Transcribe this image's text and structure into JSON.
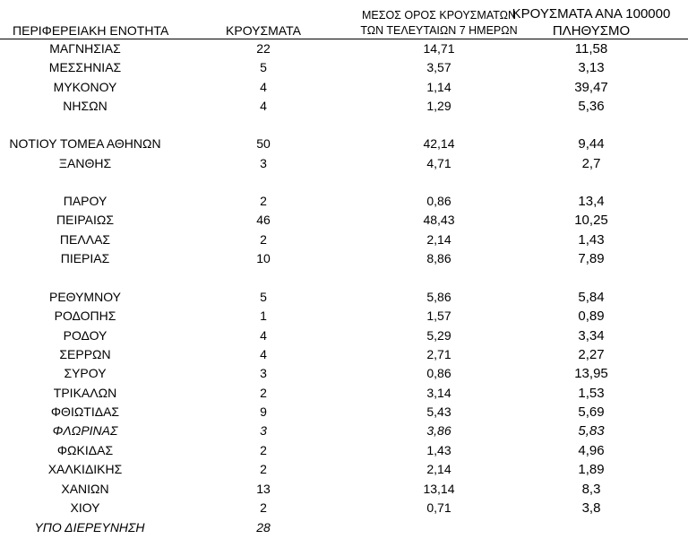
{
  "headers": {
    "region": "ΠΕΡΙΦΕΡΕΙΑΚΗ ΕΝΟΤΗΤΑ",
    "cases": "ΚΡΟΥΣΜΑΤΑ",
    "avg_line1": "ΜΕΣΟΣ ΟΡΟΣ ΚΡΟΥΣΜΑΤΩΝ",
    "avg_line2": "ΤΩΝ ΤΕΛΕΥΤΑΙΩΝ 7 ΗΜΕΡΩΝ",
    "per100k_line1": "ΚΡΟΥΣΜΑΤΑ ΑΝΑ 100000",
    "per100k_line2": "ΠΛΗΘΥΣΜΟ"
  },
  "rows": [
    {
      "region": "ΜΑΓΝΗΣΙΑΣ",
      "cases": "22",
      "avg": "14,71",
      "per100k": "11,58"
    },
    {
      "region": "ΜΕΣΣΗΝΙΑΣ",
      "cases": "5",
      "avg": "3,57",
      "per100k": "3,13"
    },
    {
      "region": "ΜΥΚΟΝΟΥ",
      "cases": "4",
      "avg": "1,14",
      "per100k": "39,47"
    },
    {
      "region": "ΝΗΣΩΝ",
      "cases": "4",
      "avg": "1,29",
      "per100k": "5,36"
    },
    {
      "region": "ΝΟΤΙΟΥ ΤΟΜΕΑ ΑΘΗΝΩΝ",
      "cases": "50",
      "avg": "42,14",
      "per100k": "9,44"
    },
    {
      "region": "ΞΑΝΘΗΣ",
      "cases": "3",
      "avg": "4,71",
      "per100k": "2,7"
    },
    {
      "region": "ΠΑΡΟΥ",
      "cases": "2",
      "avg": "0,86",
      "per100k": "13,4"
    },
    {
      "region": "ΠΕΙΡΑΙΩΣ",
      "cases": "46",
      "avg": "48,43",
      "per100k": "10,25"
    },
    {
      "region": "ΠΕΛΛΑΣ",
      "cases": "2",
      "avg": "2,14",
      "per100k": "1,43"
    },
    {
      "region": "ΠΙΕΡΙΑΣ",
      "cases": "10",
      "avg": "8,86",
      "per100k": "7,89"
    },
    {
      "region": "ΡΕΘΥΜΝΟΥ",
      "cases": "5",
      "avg": "5,86",
      "per100k": "5,84"
    },
    {
      "region": "ΡΟΔΟΠΗΣ",
      "cases": "1",
      "avg": "1,57",
      "per100k": "0,89"
    },
    {
      "region": "ΡΟΔΟΥ",
      "cases": "4",
      "avg": "5,29",
      "per100k": "3,34"
    },
    {
      "region": "ΣΕΡΡΩΝ",
      "cases": "4",
      "avg": "2,71",
      "per100k": "2,27"
    },
    {
      "region": "ΣΥΡΟΥ",
      "cases": "3",
      "avg": "0,86",
      "per100k": "13,95"
    },
    {
      "region": "ΤΡΙΚΑΛΩΝ",
      "cases": "2",
      "avg": "3,14",
      "per100k": "1,53"
    },
    {
      "region": "ΦΘΙΩΤΙΔΑΣ",
      "cases": "9",
      "avg": "5,43",
      "per100k": "5,69"
    },
    {
      "region": "ΦΛΩΡΙΝΑΣ",
      "cases": "3",
      "avg": "3,86",
      "per100k": "5,83"
    },
    {
      "region": "ΦΩΚΙΔΑΣ",
      "cases": "2",
      "avg": "1,43",
      "per100k": "4,96"
    },
    {
      "region": "ΧΑΛΚΙΔΙΚΗΣ",
      "cases": "2",
      "avg": "2,14",
      "per100k": "1,89"
    },
    {
      "region": "ΧΑΝΙΩΝ",
      "cases": "13",
      "avg": "13,14",
      "per100k": "8,3"
    },
    {
      "region": "ΧΙΟΥ",
      "cases": "2",
      "avg": "0,71",
      "per100k": "3,8"
    },
    {
      "region": "ΥΠΟ ΔΙΕΡΕΥΝΗΣΗ",
      "cases": "28",
      "avg": "",
      "per100k": ""
    }
  ]
}
